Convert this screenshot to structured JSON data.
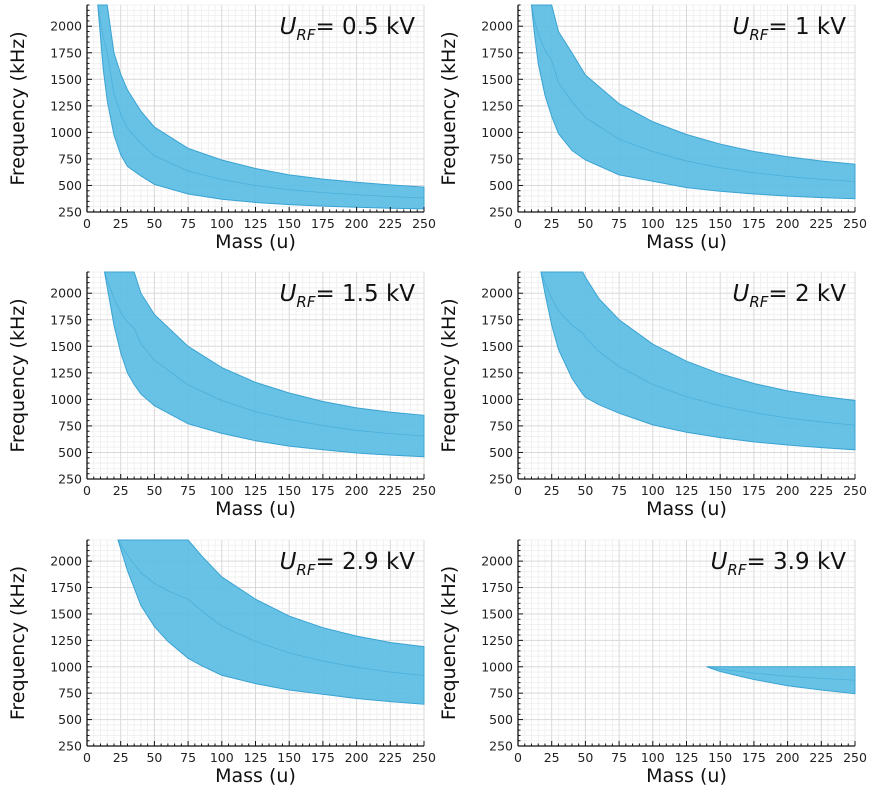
{
  "colors": {
    "band": "#5bbde4",
    "band_line": "#3aa3d2",
    "grid_major": "#d9d9d9",
    "grid_minor": "#eeeeee",
    "axis": "#111111"
  },
  "chart_data": [
    {
      "type": "area",
      "panel_label": {
        "var": "U",
        "sub": "RF",
        "value": "= 0.5 kV"
      },
      "xlabel": "Mass (u)",
      "ylabel": "Frequency (kHz)",
      "xlim": [
        0,
        250
      ],
      "ylim": [
        250,
        2200
      ],
      "xticks": [
        0,
        25,
        50,
        75,
        100,
        125,
        150,
        175,
        200,
        225,
        250
      ],
      "yticks": [
        250,
        500,
        750,
        1000,
        1250,
        1500,
        1750,
        2000
      ],
      "grid": true,
      "band": {
        "x": [
          8,
          10,
          12,
          15,
          20,
          25,
          30,
          40,
          50,
          75,
          100,
          125,
          150,
          175,
          200,
          225,
          250
        ],
        "upper": [
          2200,
          2200,
          2200,
          2200,
          1750,
          1550,
          1400,
          1200,
          1050,
          850,
          740,
          660,
          600,
          560,
          530,
          505,
          485
        ],
        "lower": [
          2200,
          1900,
          1600,
          1300,
          975,
          790,
          680,
          590,
          510,
          420,
          370,
          340,
          320,
          305,
          295,
          285,
          280
        ]
      }
    },
    {
      "type": "area",
      "panel_label": {
        "var": "U",
        "sub": "RF",
        "value": "= 1 kV"
      },
      "xlabel": "Mass (u)",
      "ylabel": "Frequency (kHz)",
      "xlim": [
        0,
        250
      ],
      "ylim": [
        250,
        2200
      ],
      "xticks": [
        0,
        25,
        50,
        75,
        100,
        125,
        150,
        175,
        200,
        225,
        250
      ],
      "yticks": [
        250,
        500,
        750,
        1000,
        1250,
        1500,
        1750,
        2000
      ],
      "grid": true,
      "band": {
        "x": [
          10,
          12,
          15,
          20,
          25,
          30,
          40,
          50,
          75,
          100,
          125,
          150,
          175,
          200,
          225,
          250
        ],
        "upper": [
          2200,
          2200,
          2200,
          2200,
          2200,
          1950,
          1750,
          1540,
          1270,
          1100,
          980,
          890,
          820,
          770,
          730,
          700
        ],
        "lower": [
          2200,
          1950,
          1650,
          1350,
          1150,
          990,
          830,
          740,
          600,
          540,
          480,
          445,
          420,
          400,
          385,
          375
        ]
      }
    },
    {
      "type": "area",
      "panel_label": {
        "var": "U",
        "sub": "RF",
        "value": "= 1.5 kV"
      },
      "xlabel": "Mass (u)",
      "ylabel": "Frequency (kHz)",
      "xlim": [
        0,
        250
      ],
      "ylim": [
        250,
        2200
      ],
      "xticks": [
        0,
        25,
        50,
        75,
        100,
        125,
        150,
        175,
        200,
        225,
        250
      ],
      "yticks": [
        250,
        500,
        750,
        1000,
        1250,
        1500,
        1750,
        2000
      ],
      "grid": true,
      "band": {
        "x": [
          13,
          20,
          25,
          30,
          35,
          40,
          50,
          75,
          100,
          125,
          150,
          175,
          200,
          225,
          250
        ],
        "upper": [
          2200,
          2200,
          2200,
          2200,
          2200,
          2000,
          1800,
          1500,
          1300,
          1160,
          1060,
          980,
          920,
          880,
          850
        ],
        "lower": [
          2200,
          1700,
          1440,
          1250,
          1140,
          1050,
          940,
          770,
          680,
          610,
          560,
          525,
          495,
          475,
          460
        ]
      }
    },
    {
      "type": "area",
      "panel_label": {
        "var": "U",
        "sub": "RF",
        "value": "= 2 kV"
      },
      "xlabel": "Mass (u)",
      "ylabel": "Frequency (kHz)",
      "xlim": [
        0,
        250
      ],
      "ylim": [
        250,
        2200
      ],
      "xticks": [
        0,
        25,
        50,
        75,
        100,
        125,
        150,
        175,
        200,
        225,
        250
      ],
      "yticks": [
        250,
        500,
        750,
        1000,
        1250,
        1500,
        1750,
        2000
      ],
      "grid": true,
      "band": {
        "x": [
          17,
          20,
          25,
          30,
          40,
          48,
          50,
          60,
          75,
          100,
          125,
          150,
          175,
          200,
          225,
          250
        ],
        "upper": [
          2200,
          2200,
          2200,
          2200,
          2200,
          2200,
          2150,
          1950,
          1750,
          1520,
          1360,
          1240,
          1150,
          1080,
          1030,
          990
        ],
        "lower": [
          2200,
          2000,
          1700,
          1470,
          1200,
          1050,
          1020,
          950,
          870,
          760,
          690,
          640,
          600,
          570,
          545,
          525
        ]
      }
    },
    {
      "type": "area",
      "panel_label": {
        "var": "U",
        "sub": "RF",
        "value": "= 2.9 kV"
      },
      "xlabel": "Mass (u)",
      "ylabel": "Frequency (kHz)",
      "xlim": [
        0,
        250
      ],
      "ylim": [
        250,
        2200
      ],
      "xticks": [
        0,
        25,
        50,
        75,
        100,
        125,
        150,
        175,
        200,
        225,
        250
      ],
      "yticks": [
        250,
        500,
        750,
        1000,
        1250,
        1500,
        1750,
        2000
      ],
      "grid": true,
      "band": {
        "x": [
          23,
          30,
          40,
          50,
          60,
          75,
          85,
          100,
          125,
          150,
          175,
          200,
          225,
          250
        ],
        "upper": [
          2200,
          2200,
          2200,
          2200,
          2200,
          2200,
          2050,
          1850,
          1640,
          1480,
          1370,
          1290,
          1230,
          1190
        ],
        "lower": [
          2200,
          1910,
          1580,
          1380,
          1240,
          1080,
          1010,
          920,
          840,
          780,
          740,
          700,
          670,
          645
        ]
      }
    },
    {
      "type": "area",
      "panel_label": {
        "var": "U",
        "sub": "RF",
        "value": "= 3.9 kV"
      },
      "xlabel": "Mass (u)",
      "ylabel": "Frequency (kHz)",
      "xlim": [
        0,
        250
      ],
      "ylim": [
        250,
        2200
      ],
      "xticks": [
        0,
        25,
        50,
        75,
        100,
        125,
        150,
        175,
        200,
        225,
        250
      ],
      "yticks": [
        250,
        500,
        750,
        1000,
        1250,
        1500,
        1750,
        2000
      ],
      "grid": true,
      "band": {
        "x": [
          140,
          150,
          175,
          200,
          225,
          250
        ],
        "upper": [
          1000,
          1000,
          1000,
          1000,
          1000,
          1000
        ],
        "lower": [
          1000,
          955,
          880,
          820,
          780,
          745
        ]
      }
    }
  ]
}
